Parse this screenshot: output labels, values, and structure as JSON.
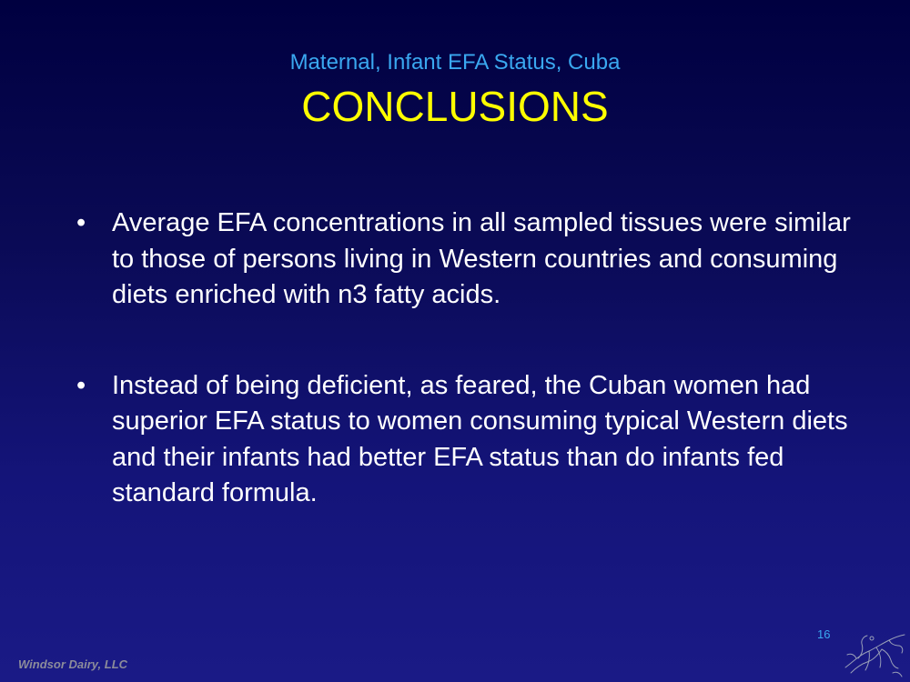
{
  "slide": {
    "subtitle": "Maternal, Infant EFA Status, Cuba",
    "title": "CONCLUSIONS",
    "bullet_marker": "•",
    "bullets": [
      "Average EFA concentrations in all sampled tissues were similar to those of persons living in Western countries and consuming diets enriched with n3 fatty acids.",
      "Instead of being deficient, as feared, the Cuban women had superior EFA status to women consuming typical Western diets and their infants had better EFA status than do infants fed standard formula."
    ],
    "footer": "Windsor Dairy, LLC",
    "page_number": "16",
    "logo_icon": "windsor-dairy-logo-icon"
  },
  "colors": {
    "background_top": "#000040",
    "background_bottom": "#1a1a86",
    "subtitle": "#3aa8f0",
    "title": "#ffff00",
    "body_text": "#ffffff",
    "footer": "#8c8c9a"
  }
}
